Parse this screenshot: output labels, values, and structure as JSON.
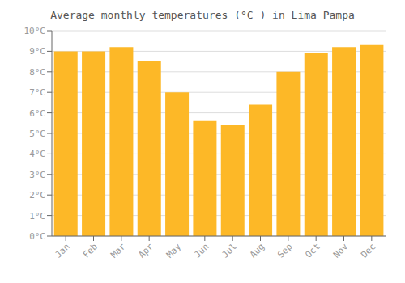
{
  "chart_data": {
    "type": "bar",
    "title": "Average monthly temperatures (°C ) in Lima Pampa",
    "categories": [
      "Jan",
      "Feb",
      "Mar",
      "Apr",
      "May",
      "Jun",
      "Jul",
      "Aug",
      "Sep",
      "Oct",
      "Nov",
      "Dec"
    ],
    "values": [
      9.0,
      9.0,
      9.2,
      8.5,
      7.0,
      5.6,
      5.4,
      6.4,
      8.0,
      8.9,
      9.2,
      9.3
    ],
    "color": "#FDB827",
    "ylim": [
      0,
      10
    ],
    "yticks": [
      {
        "value": 0,
        "label": "0°C"
      },
      {
        "value": 1,
        "label": "1°C"
      },
      {
        "value": 2,
        "label": "2°C"
      },
      {
        "value": 3,
        "label": "3°C"
      },
      {
        "value": 4,
        "label": "4°C"
      },
      {
        "value": 5,
        "label": "5°C"
      },
      {
        "value": 6,
        "label": "6°C"
      },
      {
        "value": 7,
        "label": "7°C"
      },
      {
        "value": 8,
        "label": "8°C"
      },
      {
        "value": 9,
        "label": "9°C"
      },
      {
        "value": 10,
        "label": "10°C"
      }
    ],
    "grid": true
  }
}
